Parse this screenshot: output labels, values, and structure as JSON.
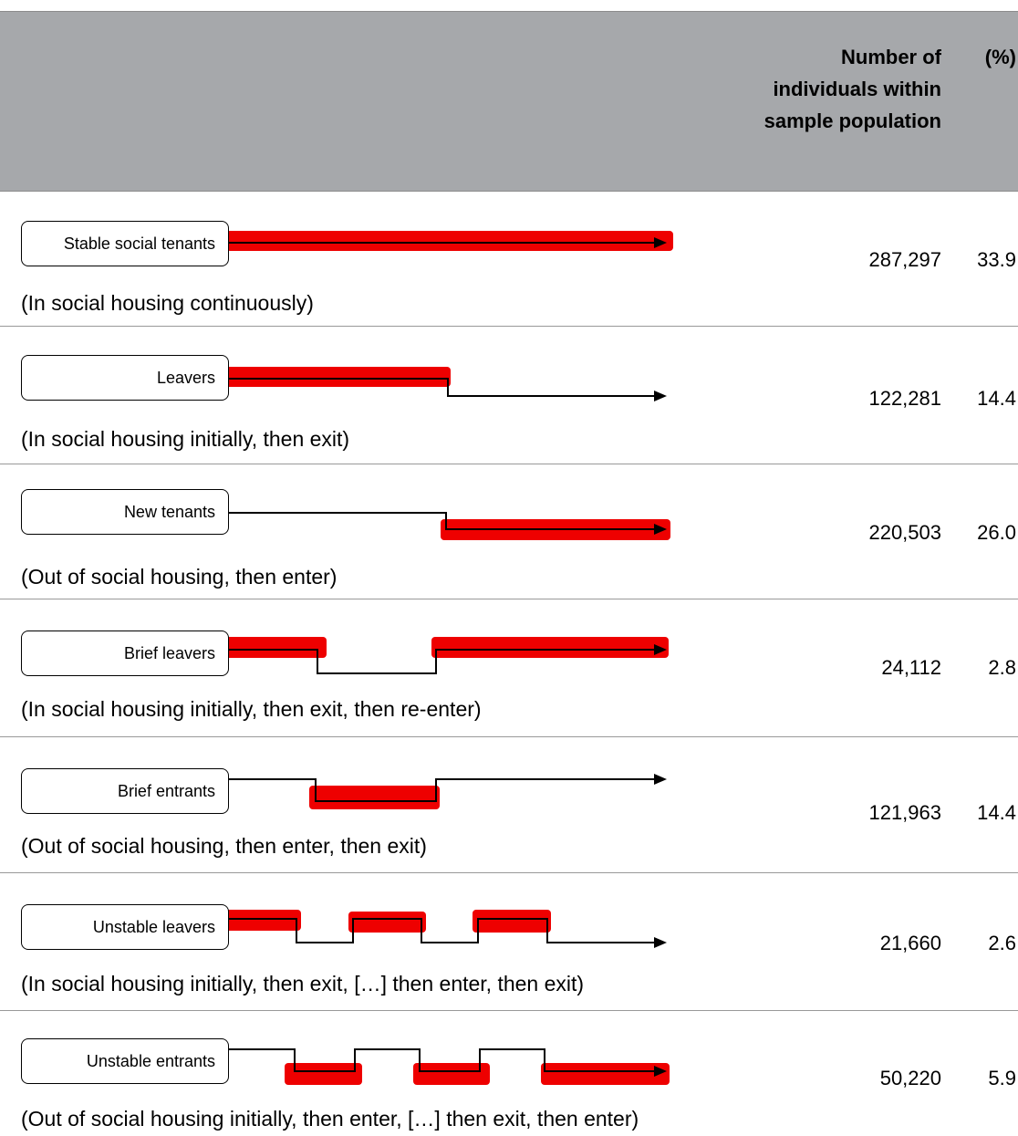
{
  "header": {
    "count_label": "Number of individuals within sample population",
    "pct_label": "(%)"
  },
  "rows": [
    {
      "label": "Stable social tenants",
      "description": "(In social housing continuously)",
      "count": "287,297",
      "pct": "33.9"
    },
    {
      "label": "Leavers",
      "description": "(In social housing initially, then exit)",
      "count": "122,281",
      "pct": "14.4"
    },
    {
      "label": "New tenants",
      "description": "(Out of social housing, then enter)",
      "count": "220,503",
      "pct": "26.0"
    },
    {
      "label": "Brief leavers",
      "description": "(In social housing initially, then exit, then re-enter)",
      "count": "24,112",
      "pct": "2.8"
    },
    {
      "label": "Brief entrants",
      "description": "(Out of social housing, then enter, then exit)",
      "count": "121,963",
      "pct": "14.4"
    },
    {
      "label": "Unstable leavers",
      "description": "(In social housing initially, then exit, […] then enter, then exit)",
      "count": "21,660",
      "pct": "2.6"
    },
    {
      "label": "Unstable entrants",
      "description": "(Out of social housing initially, then enter, […] then exit, then enter)",
      "count": "50,220",
      "pct": "5.9"
    }
  ],
  "colors": {
    "header_bg": "#a6a8ab",
    "highlight": "#ee0000",
    "line": "#000000"
  }
}
